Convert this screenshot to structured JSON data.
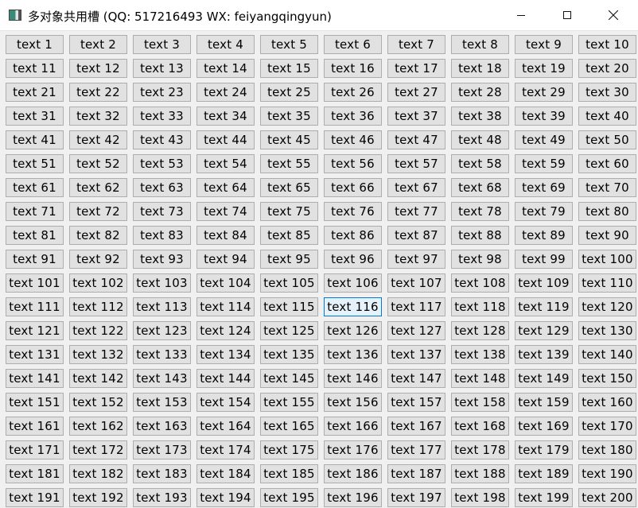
{
  "window": {
    "title": "多对象共用槽 (QQ: 517216493 WX: feiyangqingyun)",
    "icon": "app-window-icon",
    "controls": [
      "minimize-icon",
      "maximize-icon",
      "close-icon"
    ]
  },
  "grid": {
    "columns": 10,
    "hovered_index": 115,
    "hover_color": "#e5f1fb",
    "hover_border": "#0078d7",
    "buttons": [
      "text 1",
      "text 2",
      "text 3",
      "text 4",
      "text 5",
      "text 6",
      "text 7",
      "text 8",
      "text 9",
      "text 10",
      "text 11",
      "text 12",
      "text 13",
      "text 14",
      "text 15",
      "text 16",
      "text 17",
      "text 18",
      "text 19",
      "text 20",
      "text 21",
      "text 22",
      "text 23",
      "text 24",
      "text 25",
      "text 26",
      "text 27",
      "text 28",
      "text 29",
      "text 30",
      "text 31",
      "text 32",
      "text 33",
      "text 34",
      "text 35",
      "text 36",
      "text 37",
      "text 38",
      "text 39",
      "text 40",
      "text 41",
      "text 42",
      "text 43",
      "text 44",
      "text 45",
      "text 46",
      "text 47",
      "text 48",
      "text 49",
      "text 50",
      "text 51",
      "text 52",
      "text 53",
      "text 54",
      "text 55",
      "text 56",
      "text 57",
      "text 58",
      "text 59",
      "text 60",
      "text 61",
      "text 62",
      "text 63",
      "text 64",
      "text 65",
      "text 66",
      "text 67",
      "text 68",
      "text 69",
      "text 70",
      "text 71",
      "text 72",
      "text 73",
      "text 74",
      "text 75",
      "text 76",
      "text 77",
      "text 78",
      "text 79",
      "text 80",
      "text 81",
      "text 82",
      "text 83",
      "text 84",
      "text 85",
      "text 86",
      "text 87",
      "text 88",
      "text 89",
      "text 90",
      "text 91",
      "text 92",
      "text 93",
      "text 94",
      "text 95",
      "text 96",
      "text 97",
      "text 98",
      "text 99",
      "text 100",
      "text 101",
      "text 102",
      "text 103",
      "text 104",
      "text 105",
      "text 106",
      "text 107",
      "text 108",
      "text 109",
      "text 110",
      "text 111",
      "text 112",
      "text 113",
      "text 114",
      "text 115",
      "text 116",
      "text 117",
      "text 118",
      "text 119",
      "text 120",
      "text 121",
      "text 122",
      "text 123",
      "text 124",
      "text 125",
      "text 126",
      "text 127",
      "text 128",
      "text 129",
      "text 130",
      "text 131",
      "text 132",
      "text 133",
      "text 134",
      "text 135",
      "text 136",
      "text 137",
      "text 138",
      "text 139",
      "text 140",
      "text 141",
      "text 142",
      "text 143",
      "text 144",
      "text 145",
      "text 146",
      "text 147",
      "text 148",
      "text 149",
      "text 150",
      "text 151",
      "text 152",
      "text 153",
      "text 154",
      "text 155",
      "text 156",
      "text 157",
      "text 158",
      "text 159",
      "text 160",
      "text 161",
      "text 162",
      "text 163",
      "text 164",
      "text 165",
      "text 166",
      "text 167",
      "text 168",
      "text 169",
      "text 170",
      "text 171",
      "text 172",
      "text 173",
      "text 174",
      "text 175",
      "text 176",
      "text 177",
      "text 178",
      "text 179",
      "text 180",
      "text 181",
      "text 182",
      "text 183",
      "text 184",
      "text 185",
      "text 186",
      "text 187",
      "text 188",
      "text 189",
      "text 190",
      "text 191",
      "text 192",
      "text 193",
      "text 194",
      "text 195",
      "text 196",
      "text 197",
      "text 198",
      "text 199",
      "text 200"
    ]
  }
}
